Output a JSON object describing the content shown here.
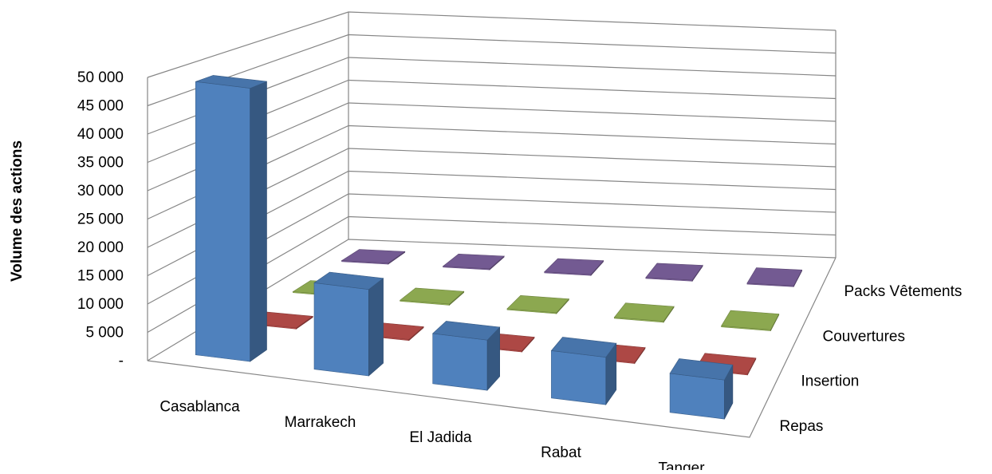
{
  "chart_data": {
    "type": "bar",
    "subtype": "3d-column",
    "title": "",
    "ylabel": "Volume des actions",
    "xlabel": "",
    "ylim": [
      0,
      50000
    ],
    "yticks": [
      0,
      5000,
      10000,
      15000,
      20000,
      25000,
      30000,
      35000,
      40000,
      45000,
      50000
    ],
    "ytick_labels": [
      "-",
      "5 000",
      "10 000",
      "15 000",
      "20 000",
      "25 000",
      "30 000",
      "35 000",
      "40 000",
      "45 000",
      "50 000"
    ],
    "grid": true,
    "categories": [
      "Casablanca",
      "Marrakech",
      "El Jadida",
      "Rabat",
      "Tanger"
    ],
    "series": [
      {
        "name": "Repas",
        "color": "#4F81BD",
        "values": [
          49000,
          15500,
          9000,
          8500,
          7000
        ]
      },
      {
        "name": "Insertion",
        "color": "#C0504D",
        "values": [
          0,
          0,
          0,
          0,
          0
        ]
      },
      {
        "name": "Couvertures",
        "color": "#9BBB59",
        "values": [
          0,
          0,
          0,
          0,
          0
        ]
      },
      {
        "name": "Packs Vêtements",
        "color": "#8064A2",
        "values": [
          0,
          0,
          0,
          0,
          0
        ]
      }
    ]
  }
}
